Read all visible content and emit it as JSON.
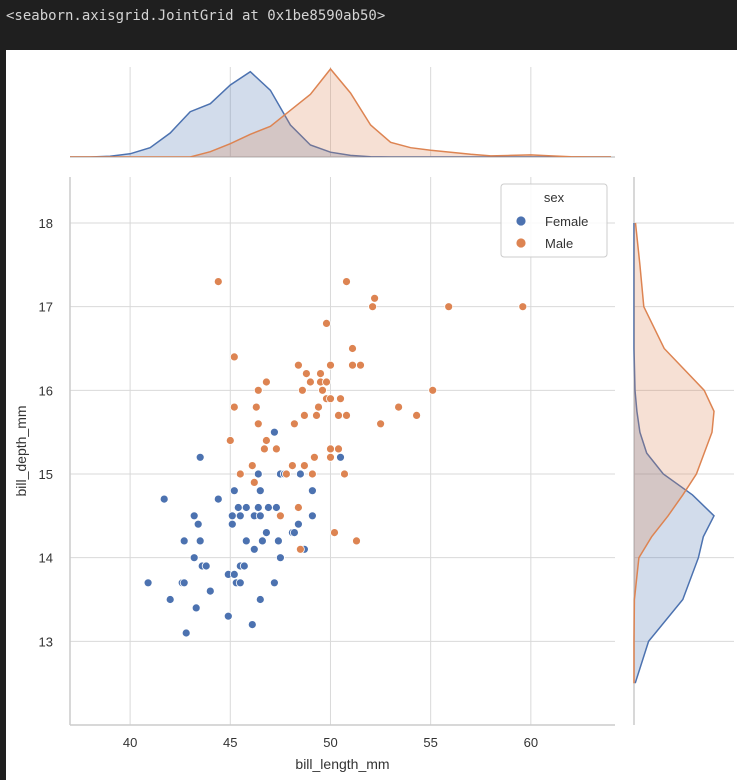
{
  "output_header": "<seaborn.axisgrid.JointGrid at 0x1be8590ab50>",
  "chart_data": {
    "type": "scatter",
    "title": "",
    "xlabel": "bill_length_mm",
    "ylabel": "bill_depth_mm",
    "xlim": [
      37.0,
      64.2
    ],
    "ylim": [
      12.0,
      18.55
    ],
    "xticks": [
      40,
      45,
      50,
      55,
      60
    ],
    "yticks": [
      13,
      14,
      15,
      16,
      17,
      18
    ],
    "grid": true,
    "legend": {
      "title": "sex",
      "placement": "top-right"
    },
    "colors": {
      "Female": "#4c72b0",
      "Male": "#dd8452"
    },
    "series": [
      {
        "name": "Female",
        "points": [
          [
            40.9,
            13.7
          ],
          [
            41.7,
            14.7
          ],
          [
            42.0,
            13.5
          ],
          [
            42.6,
            13.7
          ],
          [
            42.7,
            13.7
          ],
          [
            42.7,
            14.2
          ],
          [
            42.8,
            13.1
          ],
          [
            43.2,
            14.5
          ],
          [
            43.2,
            14.0
          ],
          [
            43.3,
            13.4
          ],
          [
            43.4,
            14.4
          ],
          [
            43.5,
            14.2
          ],
          [
            43.5,
            15.2
          ],
          [
            43.6,
            13.9
          ],
          [
            43.8,
            13.9
          ],
          [
            44.0,
            13.6
          ],
          [
            44.4,
            14.7
          ],
          [
            44.9,
            13.3
          ],
          [
            44.9,
            13.8
          ],
          [
            45.1,
            14.5
          ],
          [
            45.1,
            14.4
          ],
          [
            45.2,
            14.8
          ],
          [
            45.2,
            13.8
          ],
          [
            45.3,
            13.7
          ],
          [
            45.4,
            14.6
          ],
          [
            45.5,
            13.7
          ],
          [
            45.5,
            13.9
          ],
          [
            45.5,
            14.5
          ],
          [
            45.7,
            13.9
          ],
          [
            45.8,
            14.6
          ],
          [
            45.8,
            14.2
          ],
          [
            46.1,
            13.2
          ],
          [
            46.2,
            14.1
          ],
          [
            46.2,
            14.5
          ],
          [
            46.4,
            15.0
          ],
          [
            46.4,
            14.6
          ],
          [
            46.5,
            13.5
          ],
          [
            46.5,
            14.5
          ],
          [
            46.5,
            14.8
          ],
          [
            46.6,
            14.2
          ],
          [
            46.8,
            14.3
          ],
          [
            46.9,
            14.6
          ],
          [
            47.2,
            13.7
          ],
          [
            47.2,
            15.5
          ],
          [
            47.3,
            14.6
          ],
          [
            47.4,
            14.2
          ],
          [
            47.5,
            14.0
          ],
          [
            47.5,
            15.0
          ],
          [
            47.7,
            15.0
          ],
          [
            48.1,
            14.3
          ],
          [
            48.2,
            14.3
          ],
          [
            48.4,
            14.4
          ],
          [
            48.5,
            15.0
          ],
          [
            48.7,
            14.1
          ],
          [
            49.1,
            14.5
          ],
          [
            49.1,
            14.8
          ],
          [
            50.5,
            15.2
          ]
        ]
      },
      {
        "name": "Male",
        "points": [
          [
            44.4,
            17.3
          ],
          [
            45.0,
            15.4
          ],
          [
            45.2,
            16.4
          ],
          [
            45.2,
            15.8
          ],
          [
            45.5,
            15.0
          ],
          [
            46.1,
            15.1
          ],
          [
            46.2,
            14.9
          ],
          [
            46.3,
            15.8
          ],
          [
            46.4,
            16.0
          ],
          [
            46.4,
            15.6
          ],
          [
            46.7,
            15.3
          ],
          [
            46.8,
            15.4
          ],
          [
            46.8,
            16.1
          ],
          [
            47.3,
            15.3
          ],
          [
            47.5,
            14.5
          ],
          [
            47.8,
            15.0
          ],
          [
            48.1,
            15.1
          ],
          [
            48.2,
            15.6
          ],
          [
            48.4,
            14.6
          ],
          [
            48.4,
            16.3
          ],
          [
            48.5,
            14.1
          ],
          [
            48.6,
            16.0
          ],
          [
            48.7,
            15.1
          ],
          [
            48.7,
            15.7
          ],
          [
            48.8,
            16.2
          ],
          [
            49.0,
            16.1
          ],
          [
            49.1,
            15.0
          ],
          [
            49.2,
            15.2
          ],
          [
            49.3,
            15.7
          ],
          [
            49.4,
            15.8
          ],
          [
            49.5,
            16.1
          ],
          [
            49.5,
            16.2
          ],
          [
            49.6,
            16.0
          ],
          [
            49.8,
            15.9
          ],
          [
            49.8,
            16.1
          ],
          [
            49.8,
            16.8
          ],
          [
            50.0,
            15.3
          ],
          [
            50.0,
            15.2
          ],
          [
            50.0,
            15.9
          ],
          [
            50.0,
            16.3
          ],
          [
            50.2,
            14.3
          ],
          [
            50.4,
            15.3
          ],
          [
            50.4,
            15.7
          ],
          [
            50.5,
            15.9
          ],
          [
            50.7,
            15.0
          ],
          [
            50.8,
            15.7
          ],
          [
            50.8,
            17.3
          ],
          [
            51.1,
            16.3
          ],
          [
            51.1,
            16.5
          ],
          [
            51.3,
            14.2
          ],
          [
            51.5,
            16.3
          ],
          [
            52.1,
            17.0
          ],
          [
            52.2,
            17.1
          ],
          [
            52.5,
            15.6
          ],
          [
            53.4,
            15.8
          ],
          [
            54.3,
            15.7
          ],
          [
            55.1,
            16.0
          ],
          [
            55.9,
            17.0
          ],
          [
            59.6,
            17.0
          ]
        ]
      }
    ],
    "marginal_x_kde": {
      "type": "area",
      "x": [
        36,
        37,
        38,
        39,
        40,
        41,
        42,
        43,
        44,
        45,
        46,
        47,
        48,
        49,
        50,
        51,
        52,
        53,
        54,
        55,
        56,
        57,
        58,
        59,
        60,
        61,
        62,
        63,
        64
      ],
      "Female": [
        0,
        0,
        0,
        0.003,
        0.012,
        0.035,
        0.09,
        0.17,
        0.2,
        0.27,
        0.32,
        0.25,
        0.12,
        0.045,
        0.018,
        0.006,
        0.001,
        0,
        0,
        0,
        0,
        0,
        0,
        0,
        0,
        0,
        0,
        0,
        0
      ],
      "Male": [
        0,
        0,
        0,
        0,
        0,
        0,
        0,
        0,
        0.02,
        0.05,
        0.085,
        0.115,
        0.175,
        0.235,
        0.33,
        0.24,
        0.12,
        0.055,
        0.035,
        0.025,
        0.018,
        0.01,
        0.004,
        0.006,
        0.008,
        0.004,
        0.001,
        0,
        0
      ]
    },
    "marginal_y_kde": {
      "type": "area",
      "y": [
        12.5,
        13,
        13.5,
        14,
        14.25,
        14.5,
        14.75,
        15,
        15.25,
        15.5,
        15.75,
        16,
        16.5,
        17,
        17.5,
        18
      ],
      "Female": [
        0.012,
        0.15,
        0.5,
        0.66,
        0.71,
        0.82,
        0.6,
        0.3,
        0.13,
        0.06,
        0.03,
        0.01,
        0,
        0,
        0,
        0
      ],
      "Male": [
        0,
        0,
        0.004,
        0.05,
        0.18,
        0.35,
        0.5,
        0.64,
        0.72,
        0.8,
        0.82,
        0.72,
        0.31,
        0.1,
        0.06,
        0.015
      ]
    }
  }
}
